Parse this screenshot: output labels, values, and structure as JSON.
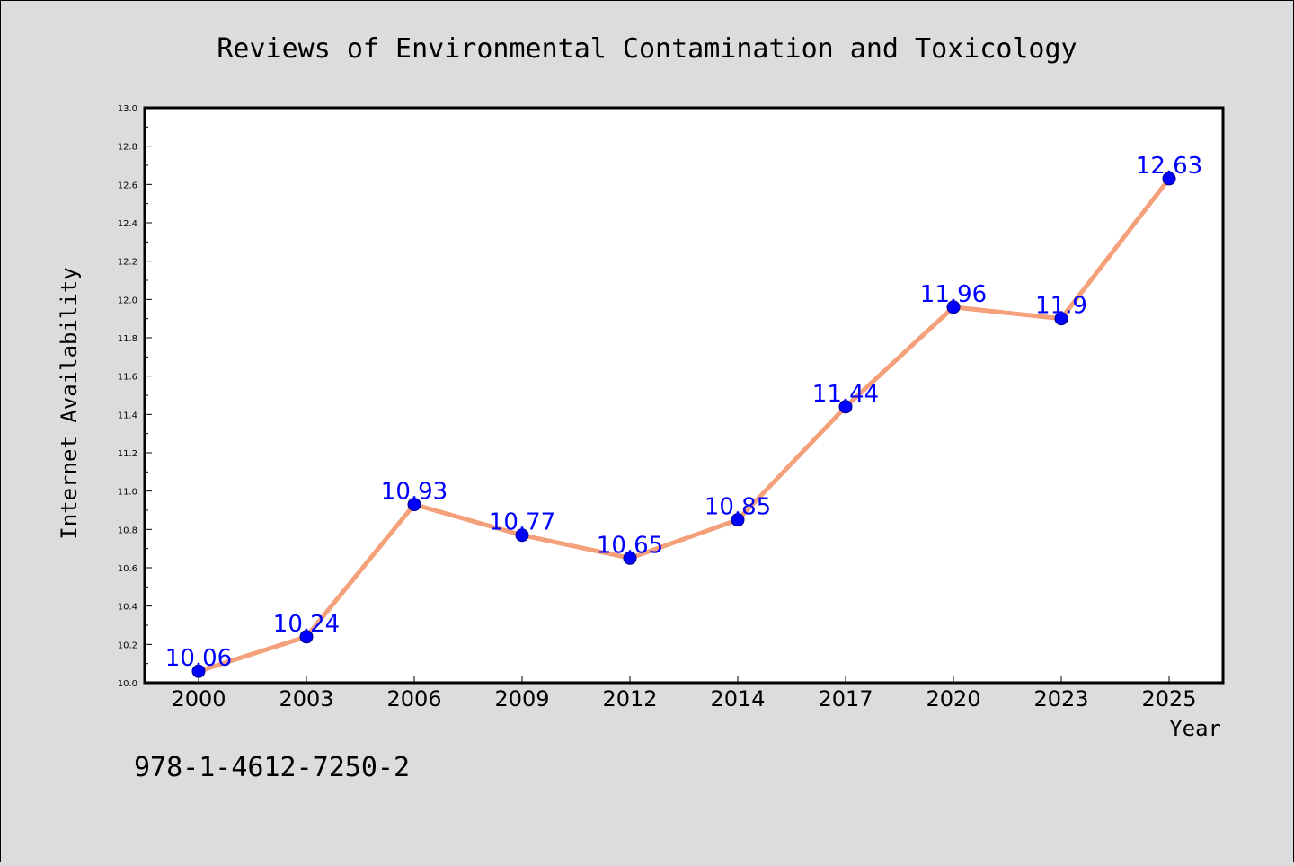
{
  "colors": {
    "background": "#dcdcdc",
    "plot_background": "#ffffff",
    "line": "#f4a07a",
    "marker": "#0000ff",
    "data_label": "#0000ff"
  },
  "footer": {
    "isbn": "978-1-4612-7250-2"
  },
  "chart_data": {
    "type": "line",
    "title": "Reviews of Environmental Contamination and Toxicology",
    "xlabel": "Year",
    "ylabel": "Internet Availability",
    "categories": [
      "2000",
      "2003",
      "2006",
      "2009",
      "2012",
      "2014",
      "2017",
      "2020",
      "2023",
      "2025"
    ],
    "series": [
      {
        "values": [
          10.06,
          10.24,
          10.93,
          10.77,
          10.65,
          10.85,
          11.44,
          11.96,
          11.9,
          12.63
        ],
        "data_labels": [
          "10.06",
          "10.24",
          "10.93",
          "10.77",
          "10.65",
          "10.85",
          "11.44",
          "11.96",
          "11.9",
          "12.63"
        ],
        "marker": "circle"
      }
    ],
    "ylim": [
      10.0,
      13.0
    ],
    "yticks": [
      "10.0",
      "10.2",
      "10.4",
      "10.6",
      "10.8",
      "11.0",
      "11.2",
      "11.4",
      "11.6",
      "11.8",
      "12.0",
      "12.2",
      "12.4",
      "12.6",
      "12.8",
      "13.0"
    ],
    "grid": false,
    "legend": "none"
  }
}
